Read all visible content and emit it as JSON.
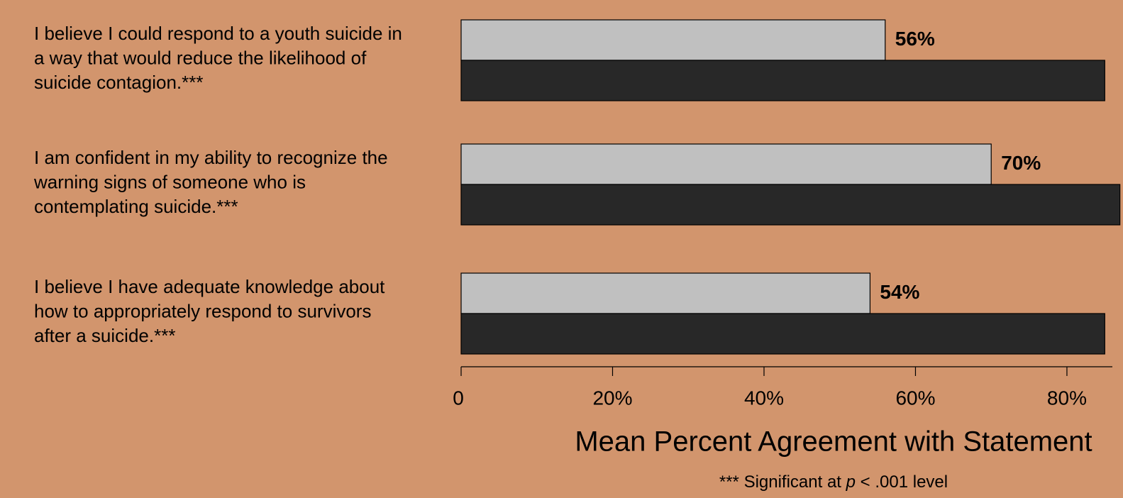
{
  "chart_data": {
    "type": "hbar",
    "categories": [
      [
        "I believe I could respond to a youth suicide in",
        "a way that would reduce the likelihood of",
        "suicide contagion.***"
      ],
      [
        "I am confident in my ability to recognize the",
        "warning signs of someone who is",
        "contemplating suicide.***"
      ],
      [
        "I believe I have adequate knowledge about",
        "how to appropriately respond to survivors",
        "after a suicide.***"
      ]
    ],
    "series": [
      {
        "color": "#c0c0c0",
        "values": [
          56,
          70,
          54
        ],
        "value_labels": [
          "56%",
          "70%",
          "54%"
        ]
      },
      {
        "color": "#282828",
        "values": [
          85,
          87,
          85
        ]
      }
    ],
    "xlim": [
      0,
      86
    ],
    "xticks": [
      0,
      {
        "value": 20,
        "label": "20%"
      },
      {
        "value": 40,
        "label": "40%"
      },
      {
        "value": 60,
        "label": "60%"
      },
      {
        "value": 80,
        "label": "80%"
      }
    ],
    "xlabel": "Mean Percent Agreement with Statement",
    "footnote": [
      "*** Significant at ",
      "p",
      " < .001 level"
    ]
  }
}
